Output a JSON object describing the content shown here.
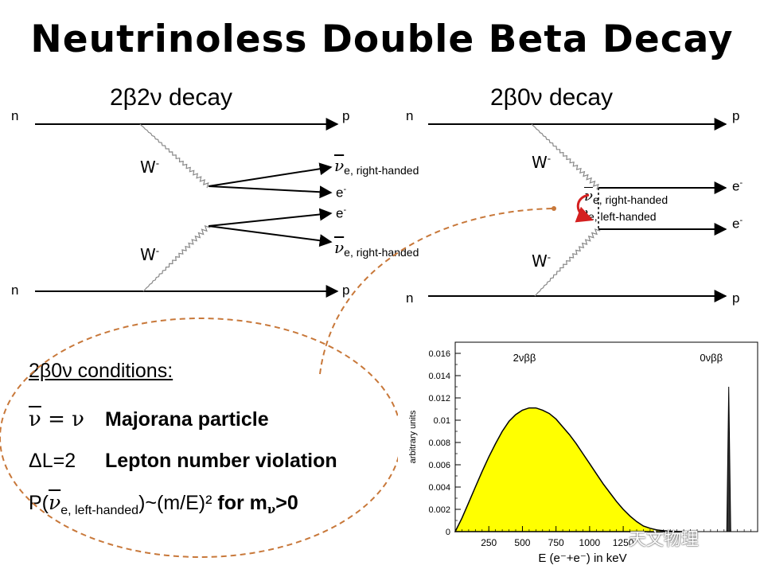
{
  "title": "Neutrinoless Double Beta Decay",
  "left_diagram": {
    "title": "2β2ν decay",
    "n_top": "n",
    "p_top": "p",
    "n_bottom": "n",
    "p_bottom": "p",
    "w_top": "W",
    "w_bottom": "W",
    "w_sup": "-",
    "nu": "ν",
    "nu_sub": "e, right-handed",
    "electron": "e",
    "e_sup": "-"
  },
  "right_diagram": {
    "title": "2β0ν decay",
    "n_top": "n",
    "p_top": "p",
    "n_bottom": "n",
    "p_bottom": "p",
    "w_top": "W",
    "w_bottom": "W",
    "w_sup": "-",
    "nu": "ν",
    "nu_sub_right": "e, right-handed",
    "nu_sub_left": "e, left-handed",
    "electron": "e",
    "e_sup": "-"
  },
  "conditions": {
    "heading": "2β0ν conditions:",
    "majorana_eq_bar": "ν",
    "majorana_eq_rest": " = ν",
    "majorana_label": "Majorana particle",
    "lepton_eq": "ΔL=2",
    "lepton_label": "Lepton number violation",
    "prob_prefix": "P(",
    "prob_nu": "ν",
    "prob_sub": "e, left-handed",
    "prob_suffix": ")~(m/E)²",
    "prob_cond": "for m",
    "prob_cond_sub": "ν",
    "prob_cond_tail": ">0"
  },
  "chart_data": {
    "type": "area",
    "title": "",
    "xlabel": "E (e⁻+e⁻) in keV",
    "ylabel": "arbitrary units",
    "xlim": [
      0,
      2250
    ],
    "ylim": [
      0,
      0.017
    ],
    "x_tick_labels": [
      "250",
      "500",
      "750",
      "1000",
      "1250"
    ],
    "x_ticks": [
      250,
      500,
      750,
      1000,
      1250
    ],
    "y_tick_labels": [
      "0",
      "0.002",
      "0.004",
      "0.006",
      "0.008",
      "0.01",
      "0.012",
      "0.014",
      "0.016"
    ],
    "y_ticks": [
      0,
      0.002,
      0.004,
      0.006,
      0.008,
      0.01,
      0.012,
      0.014,
      0.016
    ],
    "annotations": [
      "2νββ",
      "0νββ"
    ],
    "series": [
      {
        "name": "2νββ",
        "x": [
          0,
          50,
          100,
          150,
          200,
          250,
          300,
          350,
          400,
          450,
          500,
          550,
          600,
          650,
          700,
          750,
          800,
          850,
          900,
          950,
          1000,
          1050,
          1100,
          1150,
          1200,
          1250,
          1300,
          1350,
          1400,
          1450,
          1500,
          1550,
          1600,
          1650,
          1700
        ],
        "y": [
          0,
          0.0012,
          0.0026,
          0.004,
          0.0054,
          0.0067,
          0.0079,
          0.009,
          0.0099,
          0.0105,
          0.0109,
          0.0111,
          0.0111,
          0.0109,
          0.0106,
          0.0101,
          0.0094,
          0.0087,
          0.0079,
          0.007,
          0.0061,
          0.0052,
          0.0043,
          0.0035,
          0.0027,
          0.002,
          0.0014,
          0.0009,
          0.0005,
          0.0003,
          0.00015,
          8e-05,
          4e-05,
          2e-05,
          0
        ]
      },
      {
        "name": "0νββ",
        "x": [
          2020,
          2035,
          2050
        ],
        "y": [
          0,
          0.013,
          0
        ]
      }
    ],
    "fill_color": "#ffff00",
    "grid": false
  },
  "watermark": "天文物理"
}
